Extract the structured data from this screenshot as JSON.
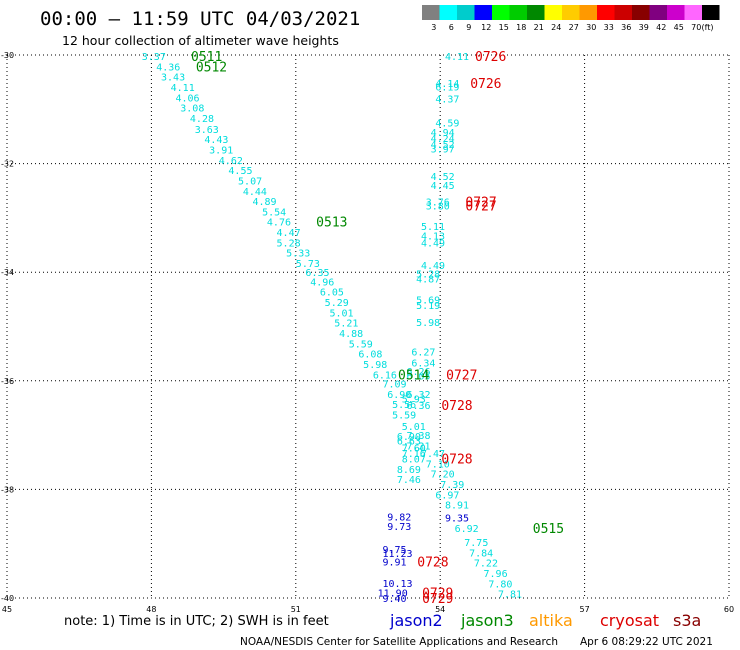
{
  "header": {
    "title": "00:00 – 11:59 UTC 04/03/2021",
    "subtitle": "12 hour collection of altimeter wave heights"
  },
  "legend": {
    "unit": "(ft)",
    "bins": [
      {
        "label": "3",
        "color": "#808080"
      },
      {
        "label": "6",
        "color": "#00ffff"
      },
      {
        "label": "9",
        "color": "#00cccc"
      },
      {
        "label": "12",
        "color": "#0000ff"
      },
      {
        "label": "15",
        "color": "#00ff00"
      },
      {
        "label": "18",
        "color": "#00cc00"
      },
      {
        "label": "21",
        "color": "#008800"
      },
      {
        "label": "24",
        "color": "#ffff00"
      },
      {
        "label": "27",
        "color": "#ffcc00"
      },
      {
        "label": "30",
        "color": "#ff9900"
      },
      {
        "label": "33",
        "color": "#ff0000"
      },
      {
        "label": "36",
        "color": "#cc0000"
      },
      {
        "label": "39",
        "color": "#880000"
      },
      {
        "label": "42",
        "color": "#800080"
      },
      {
        "label": "45",
        "color": "#cc00cc"
      },
      {
        "label": "70",
        "color": "#ff66ff"
      },
      {
        "label": "",
        "color": "#000000"
      }
    ]
  },
  "footer": {
    "note": "note: 1) Time is in UTC; 2) SWH is in feet",
    "missions": [
      {
        "name": "jason2",
        "color": "#0000cc"
      },
      {
        "name": "jason3",
        "color": "#008800"
      },
      {
        "name": "altika",
        "color": "#ff9900"
      },
      {
        "name": "cryosat",
        "color": "#dd0000"
      },
      {
        "name": "s3a",
        "color": "#880000"
      }
    ],
    "credit": "NOAA/NESDIS Center for Satellite Applications and Research",
    "timestamp": "Apr  6 08:29:22 UTC 2021"
  },
  "colors": {
    "six_to_nine": "#00dddd",
    "nine_to_twelve": "#0000cc",
    "jason3_label": "#008800",
    "cryosat_label": "#dd0000"
  },
  "chart_data": {
    "type": "scatter",
    "xlim": [
      45,
      60
    ],
    "ylim": [
      -40,
      -30
    ],
    "xticks": [
      {
        "value": 45,
        "label": "45"
      },
      {
        "value": 48,
        "label": "48"
      },
      {
        "value": 51,
        "label": "51"
      },
      {
        "value": 54,
        "label": "54"
      },
      {
        "value": 57,
        "label": "57"
      },
      {
        "value": 60,
        "label": "60"
      }
    ],
    "yticks": [
      {
        "value": -30,
        "label": "-30"
      },
      {
        "value": -32,
        "label": "-32"
      },
      {
        "value": -34,
        "label": "-34"
      },
      {
        "value": -36,
        "label": "-36"
      },
      {
        "value": -38,
        "label": "-38"
      },
      {
        "value": -40,
        "label": "-40"
      }
    ],
    "grid": true,
    "points": [
      {
        "lon": 47.8,
        "lat": -30.02,
        "text": "3.37"
      },
      {
        "lon": 48.1,
        "lat": -30.21,
        "text": "4.36"
      },
      {
        "lon": 48.2,
        "lat": -30.4,
        "text": "3.43"
      },
      {
        "lon": 48.4,
        "lat": -30.59,
        "text": "4.11"
      },
      {
        "lon": 48.5,
        "lat": -30.78,
        "text": "4.06"
      },
      {
        "lon": 48.6,
        "lat": -30.97,
        "text": "3.08"
      },
      {
        "lon": 48.8,
        "lat": -31.16,
        "text": "4.28"
      },
      {
        "lon": 48.9,
        "lat": -31.36,
        "text": "3.63"
      },
      {
        "lon": 49.1,
        "lat": -31.55,
        "text": "4.43"
      },
      {
        "lon": 49.2,
        "lat": -31.74,
        "text": "3.91"
      },
      {
        "lon": 49.4,
        "lat": -31.93,
        "text": "4.62"
      },
      {
        "lon": 49.6,
        "lat": -32.12,
        "text": "4.55"
      },
      {
        "lon": 49.8,
        "lat": -32.31,
        "text": "5.07"
      },
      {
        "lon": 49.9,
        "lat": -32.5,
        "text": "4.44"
      },
      {
        "lon": 50.1,
        "lat": -32.69,
        "text": "4.89"
      },
      {
        "lon": 50.3,
        "lat": -32.88,
        "text": "5.54"
      },
      {
        "lon": 50.4,
        "lat": -33.07,
        "text": "4.76"
      },
      {
        "lon": 50.6,
        "lat": -33.26,
        "text": "4.47"
      },
      {
        "lon": 50.6,
        "lat": -33.45,
        "text": "5.28"
      },
      {
        "lon": 50.8,
        "lat": -33.64,
        "text": "5.33"
      },
      {
        "lon": 51.0,
        "lat": -33.83,
        "text": "5.73"
      },
      {
        "lon": 51.2,
        "lat": -34.0,
        "text": "6.35"
      },
      {
        "lon": 51.3,
        "lat": -34.17,
        "text": "4.96"
      },
      {
        "lon": 51.5,
        "lat": -34.36,
        "text": "6.05"
      },
      {
        "lon": 51.6,
        "lat": -34.55,
        "text": "5.29"
      },
      {
        "lon": 51.7,
        "lat": -34.74,
        "text": "5.01"
      },
      {
        "lon": 51.8,
        "lat": -34.93,
        "text": "5.21"
      },
      {
        "lon": 51.9,
        "lat": -35.12,
        "text": "4.88"
      },
      {
        "lon": 52.1,
        "lat": -35.31,
        "text": "5.59"
      },
      {
        "lon": 52.3,
        "lat": -35.5,
        "text": "6.08"
      },
      {
        "lon": 52.4,
        "lat": -35.69,
        "text": "5.98"
      },
      {
        "lon": 52.6,
        "lat": -35.88,
        "text": "6.16"
      },
      {
        "lon": 52.8,
        "lat": -36.05,
        "text": "7.09"
      },
      {
        "lon": 52.9,
        "lat": -36.24,
        "text": "6.90"
      },
      {
        "lon": 53.3,
        "lat": -36.24,
        "text": "6.32"
      },
      {
        "lon": 53.2,
        "lat": -36.33,
        "text": "5.93"
      },
      {
        "lon": 53.0,
        "lat": -36.43,
        "text": "5.56"
      },
      {
        "lon": 53.3,
        "lat": -36.45,
        "text": "6.36"
      },
      {
        "lon": 53.0,
        "lat": -36.62,
        "text": "5.59"
      },
      {
        "lon": 53.2,
        "lat": -36.83,
        "text": "5.01"
      },
      {
        "lon": 53.3,
        "lat": -37.0,
        "text": "7.38"
      },
      {
        "lon": 53.1,
        "lat": -37.02,
        "text": "6.90"
      },
      {
        "lon": 53.1,
        "lat": -37.1,
        "text": "6.63"
      },
      {
        "lon": 53.3,
        "lat": -37.19,
        "text": "7.21"
      },
      {
        "lon": 53.2,
        "lat": -37.23,
        "text": "7.60"
      },
      {
        "lon": 53.2,
        "lat": -37.33,
        "text": "7.16"
      },
      {
        "lon": 53.6,
        "lat": -37.33,
        "text": "7.47"
      },
      {
        "lon": 53.2,
        "lat": -37.43,
        "text": "8.07"
      },
      {
        "lon": 53.7,
        "lat": -37.52,
        "text": "7.10"
      },
      {
        "lon": 53.1,
        "lat": -37.62,
        "text": "8.69"
      },
      {
        "lon": 53.8,
        "lat": -37.71,
        "text": "7.20"
      },
      {
        "lon": 53.1,
        "lat": -37.81,
        "text": "7.46"
      },
      {
        "lon": 54.0,
        "lat": -37.9,
        "text": "7.39"
      },
      {
        "lon": 53.9,
        "lat": -38.09,
        "text": "6.97"
      },
      {
        "lon": 54.1,
        "lat": -38.28,
        "text": "8.91"
      },
      {
        "lon": 54.3,
        "lat": -38.71,
        "text": "6.92"
      },
      {
        "lon": 54.5,
        "lat": -38.97,
        "text": "7.75"
      },
      {
        "lon": 54.6,
        "lat": -39.16,
        "text": "7.84"
      },
      {
        "lon": 54.7,
        "lat": -39.35,
        "text": "7.22"
      },
      {
        "lon": 54.9,
        "lat": -39.54,
        "text": "7.96"
      },
      {
        "lon": 55.0,
        "lat": -39.73,
        "text": "7.80"
      },
      {
        "lon": 55.2,
        "lat": -39.92,
        "text": "7.81"
      },
      {
        "lon": 54.1,
        "lat": -30.02,
        "text": "4.11"
      },
      {
        "lon": 53.9,
        "lat": -30.52,
        "text": "4.14"
      },
      {
        "lon": 53.9,
        "lat": -30.58,
        "text": "6.19"
      },
      {
        "lon": 53.9,
        "lat": -30.8,
        "text": "4.37"
      },
      {
        "lon": 53.9,
        "lat": -31.24,
        "text": "4.59"
      },
      {
        "lon": 53.8,
        "lat": -31.42,
        "text": "4.94"
      },
      {
        "lon": 53.8,
        "lat": -31.53,
        "text": "4.24"
      },
      {
        "lon": 53.8,
        "lat": -31.64,
        "text": "4.52"
      },
      {
        "lon": 53.8,
        "lat": -31.72,
        "text": "3.97"
      },
      {
        "lon": 53.8,
        "lat": -32.23,
        "text": "4.52"
      },
      {
        "lon": 53.8,
        "lat": -32.39,
        "text": "4.45"
      },
      {
        "lon": 53.7,
        "lat": -32.7,
        "text": "3.76"
      },
      {
        "lon": 53.7,
        "lat": -32.77,
        "text": "3.80"
      },
      {
        "lon": 53.6,
        "lat": -33.15,
        "text": "5.11"
      },
      {
        "lon": 53.6,
        "lat": -33.32,
        "text": "4.13"
      },
      {
        "lon": 53.6,
        "lat": -33.45,
        "text": "4.49"
      },
      {
        "lon": 53.6,
        "lat": -33.87,
        "text": "4.49"
      },
      {
        "lon": 53.5,
        "lat": -34.02,
        "text": "5.28"
      },
      {
        "lon": 53.5,
        "lat": -34.12,
        "text": "4.87"
      },
      {
        "lon": 53.5,
        "lat": -34.5,
        "text": "5.69"
      },
      {
        "lon": 53.5,
        "lat": -34.6,
        "text": "5.19"
      },
      {
        "lon": 53.5,
        "lat": -34.92,
        "text": "5.98"
      },
      {
        "lon": 53.4,
        "lat": -35.46,
        "text": "6.27"
      },
      {
        "lon": 53.4,
        "lat": -35.66,
        "text": "6.34"
      },
      {
        "lon": 53.3,
        "lat": -35.82,
        "text": "6.26"
      },
      {
        "lon": 53.3,
        "lat": -35.9,
        "text": "6.05"
      },
      {
        "lon": 52.9,
        "lat": -38.5,
        "text": "9.82"
      },
      {
        "lon": 52.9,
        "lat": -38.67,
        "text": "9.73"
      },
      {
        "lon": 54.1,
        "lat": -38.52,
        "text": "9.35"
      },
      {
        "lon": 52.8,
        "lat": -39.1,
        "text": "9.75"
      },
      {
        "lon": 52.8,
        "lat": -39.17,
        "text": "11.23"
      },
      {
        "lon": 52.8,
        "lat": -39.33,
        "text": "9.91"
      },
      {
        "lon": 52.8,
        "lat": -39.72,
        "text": "10.13"
      },
      {
        "lon": 52.7,
        "lat": -39.9,
        "text": "11.90"
      },
      {
        "lon": 52.8,
        "lat": -40.0,
        "text": "9.40"
      }
    ],
    "pass_labels": [
      {
        "lon": 48.2,
        "lat": -30.02,
        "text": "0511",
        "mission": "jason3"
      },
      {
        "lon": 48.3,
        "lat": -30.21,
        "text": "0512",
        "mission": "jason3"
      },
      {
        "lon": 50.8,
        "lat": -33.07,
        "text": "0513",
        "mission": "jason3"
      },
      {
        "lon": 52.5,
        "lat": -35.88,
        "text": "0514",
        "mission": "jason3"
      },
      {
        "lon": 55.3,
        "lat": -38.71,
        "text": "0515",
        "mission": "jason3"
      },
      {
        "lon": 54.1,
        "lat": -30.02,
        "text": "0726",
        "mission": "cryosat"
      },
      {
        "lon": 54.0,
        "lat": -30.52,
        "text": "0726",
        "mission": "cryosat"
      },
      {
        "lon": 53.9,
        "lat": -32.7,
        "text": "0727",
        "mission": "cryosat"
      },
      {
        "lon": 53.9,
        "lat": -32.77,
        "text": "0727",
        "mission": "cryosat"
      },
      {
        "lon": 53.5,
        "lat": -35.88,
        "text": "0727",
        "mission": "cryosat"
      },
      {
        "lon": 53.4,
        "lat": -36.45,
        "text": "0728",
        "mission": "cryosat"
      },
      {
        "lon": 53.4,
        "lat": -37.43,
        "text": "0728",
        "mission": "cryosat"
      },
      {
        "lon": 52.9,
        "lat": -39.33,
        "text": "0728",
        "mission": "cryosat"
      },
      {
        "lon": 53.0,
        "lat": -39.9,
        "text": "0729",
        "mission": "cryosat"
      },
      {
        "lon": 53.0,
        "lat": -40.0,
        "text": "0729",
        "mission": "cryosat"
      }
    ]
  }
}
